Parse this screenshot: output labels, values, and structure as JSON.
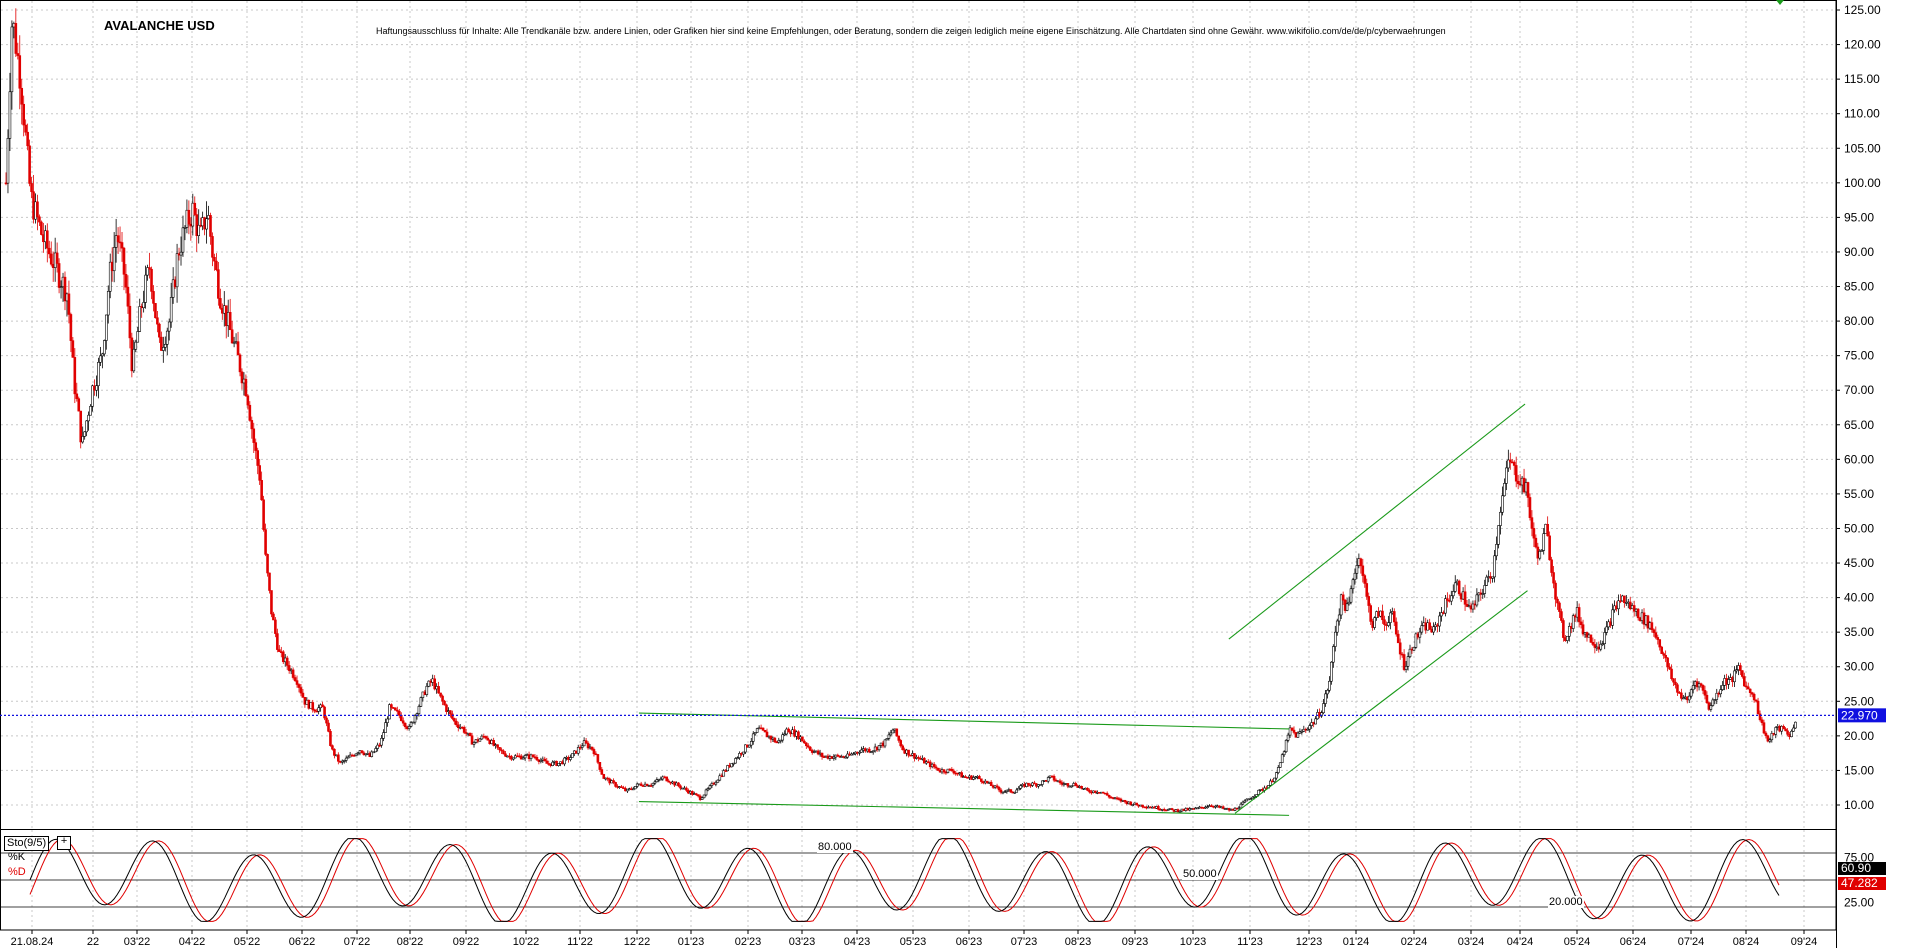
{
  "header": {
    "title": "AVALANCHE USD",
    "disclaimer": "Haftungsausschluss für Inhalte: Alle Trendkanäle bzw. andere Linien, oder Grafiken hier sind keine Empfehlungen, oder Beratung, sondern die zeigen lediglich meine eigene Einschätzung. Alle Chartdaten sind ohne Gewähr.  www.wikifolio.com/de/de/p/cyberwaehrungen"
  },
  "colors": {
    "up_candle": "#000000",
    "down_candle": "#e00000",
    "trendline": "#1a9a1a",
    "price_line": "#1010e0",
    "grid": "#c8c8c8",
    "k_line": "#000000",
    "d_line": "#e00000",
    "marker": "#1a9a1a"
  },
  "chart_data": [
    {
      "type": "candlestick",
      "title": "AVALANCHE USD",
      "y_axis_ticks": [
        "125.00",
        "120.00",
        "115.00",
        "110.00",
        "105.00",
        "100.00",
        "95.00",
        "90.00",
        "85.00",
        "80.00",
        "75.00",
        "70.00",
        "65.00",
        "60.00",
        "55.00",
        "50.00",
        "45.00",
        "40.00",
        "35.00",
        "30.00",
        "25.00",
        "20.00",
        "15.00",
        "10.00"
      ],
      "ylim": [
        7,
        127
      ],
      "x_axis_ticks": [
        "21.08.24",
        "22",
        "03'22",
        "04'22",
        "05'22",
        "06'22",
        "07'22",
        "08'22",
        "09'22",
        "10'22",
        "11'22",
        "12'22",
        "01'23",
        "02'23",
        "03'23",
        "04'23",
        "05'23",
        "06'23",
        "07'23",
        "08'23",
        "09'23",
        "10'23",
        "11'23",
        "12'23",
        "01'24",
        "02'24",
        "03'24",
        "04'24",
        "05'24",
        "06'24",
        "07'24",
        "08'24",
        "09'24"
      ],
      "grid": true,
      "current_price": 22.97,
      "current_price_label": "22.970",
      "price_path": [
        {
          "x": 0,
          "y": 100
        },
        {
          "x": 5,
          "y": 124
        },
        {
          "x": 12,
          "y": 115
        },
        {
          "x": 20,
          "y": 98
        },
        {
          "x": 30,
          "y": 92
        },
        {
          "x": 40,
          "y": 88
        },
        {
          "x": 50,
          "y": 84
        },
        {
          "x": 55,
          "y": 72
        },
        {
          "x": 62,
          "y": 62
        },
        {
          "x": 70,
          "y": 70
        },
        {
          "x": 78,
          "y": 75
        },
        {
          "x": 84,
          "y": 86
        },
        {
          "x": 90,
          "y": 93
        },
        {
          "x": 97,
          "y": 86
        },
        {
          "x": 103,
          "y": 73
        },
        {
          "x": 110,
          "y": 82
        },
        {
          "x": 117,
          "y": 88
        },
        {
          "x": 125,
          "y": 76
        },
        {
          "x": 133,
          "y": 80
        },
        {
          "x": 140,
          "y": 90
        },
        {
          "x": 147,
          "y": 94
        },
        {
          "x": 152,
          "y": 96
        },
        {
          "x": 158,
          "y": 92
        },
        {
          "x": 164,
          "y": 96
        },
        {
          "x": 168,
          "y": 90
        },
        {
          "x": 174,
          "y": 84
        },
        {
          "x": 180,
          "y": 80
        },
        {
          "x": 188,
          "y": 75
        },
        {
          "x": 196,
          "y": 70
        },
        {
          "x": 202,
          "y": 62
        },
        {
          "x": 207,
          "y": 57
        },
        {
          "x": 211,
          "y": 46
        },
        {
          "x": 216,
          "y": 38
        },
        {
          "x": 222,
          "y": 32
        },
        {
          "x": 230,
          "y": 30
        },
        {
          "x": 237,
          "y": 28
        },
        {
          "x": 243,
          "y": 25
        },
        {
          "x": 250,
          "y": 24
        },
        {
          "x": 258,
          "y": 24
        },
        {
          "x": 265,
          "y": 18
        },
        {
          "x": 272,
          "y": 16
        },
        {
          "x": 280,
          "y": 17
        },
        {
          "x": 288,
          "y": 18
        },
        {
          "x": 296,
          "y": 17
        },
        {
          "x": 305,
          "y": 19
        },
        {
          "x": 312,
          "y": 24
        },
        {
          "x": 320,
          "y": 23
        },
        {
          "x": 328,
          "y": 21
        },
        {
          "x": 335,
          "y": 24
        },
        {
          "x": 342,
          "y": 27
        },
        {
          "x": 347,
          "y": 28
        },
        {
          "x": 352,
          "y": 26
        },
        {
          "x": 358,
          "y": 24
        },
        {
          "x": 365,
          "y": 22
        },
        {
          "x": 372,
          "y": 21
        },
        {
          "x": 380,
          "y": 19
        },
        {
          "x": 390,
          "y": 20
        },
        {
          "x": 400,
          "y": 18
        },
        {
          "x": 410,
          "y": 17
        },
        {
          "x": 420,
          "y": 17
        },
        {
          "x": 430,
          "y": 17
        },
        {
          "x": 440,
          "y": 16
        },
        {
          "x": 450,
          "y": 16
        },
        {
          "x": 460,
          "y": 17
        },
        {
          "x": 470,
          "y": 19
        },
        {
          "x": 478,
          "y": 18
        },
        {
          "x": 486,
          "y": 14
        },
        {
          "x": 495,
          "y": 13
        },
        {
          "x": 505,
          "y": 12
        },
        {
          "x": 515,
          "y": 13
        },
        {
          "x": 525,
          "y": 13
        },
        {
          "x": 535,
          "y": 14
        },
        {
          "x": 545,
          "y": 13
        },
        {
          "x": 555,
          "y": 12
        },
        {
          "x": 565,
          "y": 11
        },
        {
          "x": 575,
          "y": 13
        },
        {
          "x": 585,
          "y": 15
        },
        {
          "x": 595,
          "y": 17
        },
        {
          "x": 605,
          "y": 19
        },
        {
          "x": 612,
          "y": 21
        },
        {
          "x": 620,
          "y": 20
        },
        {
          "x": 628,
          "y": 19
        },
        {
          "x": 636,
          "y": 21
        },
        {
          "x": 645,
          "y": 20
        },
        {
          "x": 655,
          "y": 18
        },
        {
          "x": 665,
          "y": 17
        },
        {
          "x": 675,
          "y": 17
        },
        {
          "x": 685,
          "y": 17
        },
        {
          "x": 695,
          "y": 18
        },
        {
          "x": 705,
          "y": 18
        },
        {
          "x": 715,
          "y": 19
        },
        {
          "x": 722,
          "y": 21
        },
        {
          "x": 730,
          "y": 18
        },
        {
          "x": 740,
          "y": 17
        },
        {
          "x": 750,
          "y": 16
        },
        {
          "x": 760,
          "y": 15
        },
        {
          "x": 770,
          "y": 15
        },
        {
          "x": 780,
          "y": 14
        },
        {
          "x": 790,
          "y": 14
        },
        {
          "x": 800,
          "y": 13
        },
        {
          "x": 810,
          "y": 12
        },
        {
          "x": 820,
          "y": 12
        },
        {
          "x": 830,
          "y": 13
        },
        {
          "x": 840,
          "y": 13
        },
        {
          "x": 850,
          "y": 14
        },
        {
          "x": 860,
          "y": 13
        },
        {
          "x": 870,
          "y": 13
        },
        {
          "x": 880,
          "y": 12
        },
        {
          "x": 890,
          "y": 12
        },
        {
          "x": 900,
          "y": 11
        },
        {
          "x": 910,
          "y": 10.5
        },
        {
          "x": 920,
          "y": 10
        },
        {
          "x": 930,
          "y": 9.8
        },
        {
          "x": 940,
          "y": 9.5
        },
        {
          "x": 950,
          "y": 9.2
        },
        {
          "x": 960,
          "y": 9.3
        },
        {
          "x": 970,
          "y": 9.5
        },
        {
          "x": 980,
          "y": 10
        },
        {
          "x": 990,
          "y": 9.5
        },
        {
          "x": 998,
          "y": 9.2
        },
        {
          "x": 1005,
          "y": 10
        },
        {
          "x": 1012,
          "y": 11
        },
        {
          "x": 1020,
          "y": 12
        },
        {
          "x": 1028,
          "y": 13
        },
        {
          "x": 1035,
          "y": 15
        },
        {
          "x": 1040,
          "y": 18
        },
        {
          "x": 1045,
          "y": 21
        },
        {
          "x": 1050,
          "y": 20
        },
        {
          "x": 1057,
          "y": 21
        },
        {
          "x": 1064,
          "y": 22
        },
        {
          "x": 1071,
          "y": 24
        },
        {
          "x": 1077,
          "y": 28
        },
        {
          "x": 1082,
          "y": 36
        },
        {
          "x": 1087,
          "y": 40
        },
        {
          "x": 1092,
          "y": 38
        },
        {
          "x": 1097,
          "y": 44
        },
        {
          "x": 1102,
          "y": 46
        },
        {
          "x": 1107,
          "y": 40
        },
        {
          "x": 1112,
          "y": 36
        },
        {
          "x": 1117,
          "y": 38
        },
        {
          "x": 1122,
          "y": 36
        },
        {
          "x": 1127,
          "y": 38
        },
        {
          "x": 1132,
          "y": 34
        },
        {
          "x": 1138,
          "y": 30
        },
        {
          "x": 1144,
          "y": 33
        },
        {
          "x": 1150,
          "y": 35
        },
        {
          "x": 1156,
          "y": 36
        },
        {
          "x": 1162,
          "y": 35
        },
        {
          "x": 1168,
          "y": 38
        },
        {
          "x": 1174,
          "y": 40
        },
        {
          "x": 1180,
          "y": 42
        },
        {
          "x": 1186,
          "y": 40
        },
        {
          "x": 1192,
          "y": 38
        },
        {
          "x": 1198,
          "y": 40
        },
        {
          "x": 1204,
          "y": 42
        },
        {
          "x": 1210,
          "y": 44
        },
        {
          "x": 1215,
          "y": 52
        },
        {
          "x": 1219,
          "y": 56
        },
        {
          "x": 1223,
          "y": 60
        },
        {
          "x": 1228,
          "y": 58
        },
        {
          "x": 1233,
          "y": 57
        },
        {
          "x": 1238,
          "y": 55
        },
        {
          "x": 1243,
          "y": 48
        },
        {
          "x": 1248,
          "y": 46
        },
        {
          "x": 1253,
          "y": 50
        },
        {
          "x": 1258,
          "y": 44
        },
        {
          "x": 1263,
          "y": 38
        },
        {
          "x": 1268,
          "y": 34
        },
        {
          "x": 1273,
          "y": 36
        },
        {
          "x": 1278,
          "y": 38
        },
        {
          "x": 1284,
          "y": 35
        },
        {
          "x": 1290,
          "y": 34
        },
        {
          "x": 1296,
          "y": 33
        },
        {
          "x": 1302,
          "y": 35
        },
        {
          "x": 1308,
          "y": 38
        },
        {
          "x": 1314,
          "y": 40
        },
        {
          "x": 1320,
          "y": 39
        },
        {
          "x": 1326,
          "y": 38
        },
        {
          "x": 1332,
          "y": 37
        },
        {
          "x": 1338,
          "y": 36
        },
        {
          "x": 1344,
          "y": 34
        },
        {
          "x": 1350,
          "y": 31
        },
        {
          "x": 1356,
          "y": 28
        },
        {
          "x": 1362,
          "y": 26
        },
        {
          "x": 1368,
          "y": 25
        },
        {
          "x": 1374,
          "y": 28
        },
        {
          "x": 1380,
          "y": 27
        },
        {
          "x": 1386,
          "y": 24
        },
        {
          "x": 1392,
          "y": 26
        },
        {
          "x": 1398,
          "y": 28
        },
        {
          "x": 1404,
          "y": 28
        },
        {
          "x": 1410,
          "y": 30
        },
        {
          "x": 1416,
          "y": 27
        },
        {
          "x": 1422,
          "y": 26
        },
        {
          "x": 1428,
          "y": 22
        },
        {
          "x": 1434,
          "y": 19
        },
        {
          "x": 1440,
          "y": 21
        },
        {
          "x": 1446,
          "y": 21
        },
        {
          "x": 1452,
          "y": 20
        },
        {
          "x": 1457,
          "y": 23
        }
      ],
      "trendlines": [
        {
          "from": {
            "x": 515,
            "y": 23.3
          },
          "to": {
            "x": 1044,
            "y": 21
          }
        },
        {
          "from": {
            "x": 515,
            "y": 10.5
          },
          "to": {
            "x": 1044,
            "y": 8.5
          }
        },
        {
          "from": {
            "x": 995,
            "y": 34
          },
          "to": {
            "x": 1236,
            "y": 68
          }
        },
        {
          "from": {
            "x": 1000,
            "y": 8.8
          },
          "to": {
            "x": 1238,
            "y": 41
          }
        }
      ]
    },
    {
      "type": "line",
      "title": "Sto(9/5)",
      "series": [
        {
          "name": "%K",
          "color": "#000000",
          "current_label": "60.90"
        },
        {
          "name": "%D",
          "color": "#e00000",
          "current_label": "47.282"
        }
      ],
      "levels": [
        {
          "value": 80,
          "label": "80.000"
        },
        {
          "value": 50,
          "label": "50.000"
        },
        {
          "value": 20,
          "label": "20.000"
        }
      ],
      "y_axis_ticks": [
        "75.00",
        "25.00"
      ],
      "ylim": [
        0,
        100
      ]
    }
  ]
}
